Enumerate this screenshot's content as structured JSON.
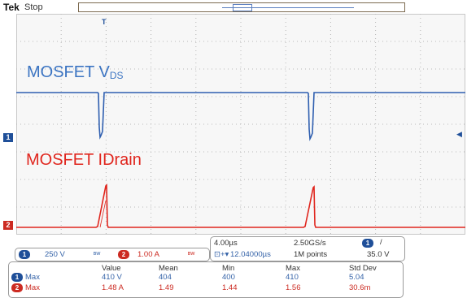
{
  "header": {
    "brand": "Tek",
    "state": "Stop"
  },
  "waveform_labels": {
    "ch1_label_main": "MOSFET V",
    "ch1_label_sub": "DS",
    "ch2_label": "MOSFET IDrain"
  },
  "markers": {
    "ch1": "1",
    "ch2": "2",
    "trigger": "T"
  },
  "channels": {
    "ch1": {
      "number": "1",
      "scale": "250 V",
      "bw_icon": "bw-limit-icon",
      "color": "#1f4f99"
    },
    "ch2": {
      "number": "2",
      "scale": "1.00 A",
      "bw_icon": "bw-limit-icon",
      "color": "#cc2b22"
    }
  },
  "horizontal": {
    "time_div": "4.00µs",
    "sample_rate": "2.50GS/s",
    "trigger_channel": "1",
    "trigger_slope": "/",
    "position": "12.04000µs",
    "record_length": "1M points",
    "trigger_level": "35.0 V"
  },
  "measurements": {
    "headers": [
      "Value",
      "Mean",
      "Min",
      "Max",
      "Std Dev"
    ],
    "rows": [
      {
        "channel": "1",
        "name": "Max",
        "value": "410 V",
        "mean": "404",
        "min": "400",
        "max": "410",
        "std": "5.04"
      },
      {
        "channel": "2",
        "name": "Max",
        "value": "1.48 A",
        "mean": "1.49",
        "min": "1.44",
        "max": "1.56",
        "std": "30.6m"
      }
    ]
  },
  "colors": {
    "ch1_trace": "#2f5fb0",
    "ch2_trace": "#e0261e",
    "grid": "#b8b8b8"
  }
}
